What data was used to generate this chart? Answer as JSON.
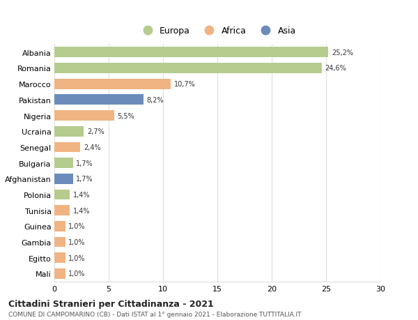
{
  "countries": [
    "Albania",
    "Romania",
    "Marocco",
    "Pakistan",
    "Nigeria",
    "Ucraina",
    "Senegal",
    "Bulgaria",
    "Afghanistan",
    "Polonia",
    "Tunisia",
    "Guinea",
    "Gambia",
    "Egitto",
    "Mali"
  ],
  "values": [
    25.2,
    24.6,
    10.7,
    8.2,
    5.5,
    2.7,
    2.4,
    1.7,
    1.7,
    1.4,
    1.4,
    1.0,
    1.0,
    1.0,
    1.0
  ],
  "labels": [
    "25,2%",
    "24,6%",
    "10,7%",
    "8,2%",
    "5,5%",
    "2,7%",
    "2,4%",
    "1,7%",
    "1,7%",
    "1,4%",
    "1,4%",
    "1,0%",
    "1,0%",
    "1,0%",
    "1,0%"
  ],
  "continent": [
    "Europa",
    "Europa",
    "Africa",
    "Asia",
    "Africa",
    "Europa",
    "Africa",
    "Europa",
    "Asia",
    "Europa",
    "Africa",
    "Africa",
    "Africa",
    "Africa",
    "Africa"
  ],
  "colors": {
    "Europa": "#b5cc8e",
    "Africa": "#f0b482",
    "Asia": "#6b8cba"
  },
  "legend_labels": [
    "Europa",
    "Africa",
    "Asia"
  ],
  "title1": "Cittadini Stranieri per Cittadinanza - 2021",
  "title2": "COMUNE DI CAMPOMARINO (CB) - Dati ISTAT al 1° gennaio 2021 - Elaborazione TUTTITALIA.IT",
  "xlim": [
    0,
    30
  ],
  "xticks": [
    0,
    5,
    10,
    15,
    20,
    25,
    30
  ],
  "background_color": "#ffffff",
  "grid_color": "#dddddd"
}
